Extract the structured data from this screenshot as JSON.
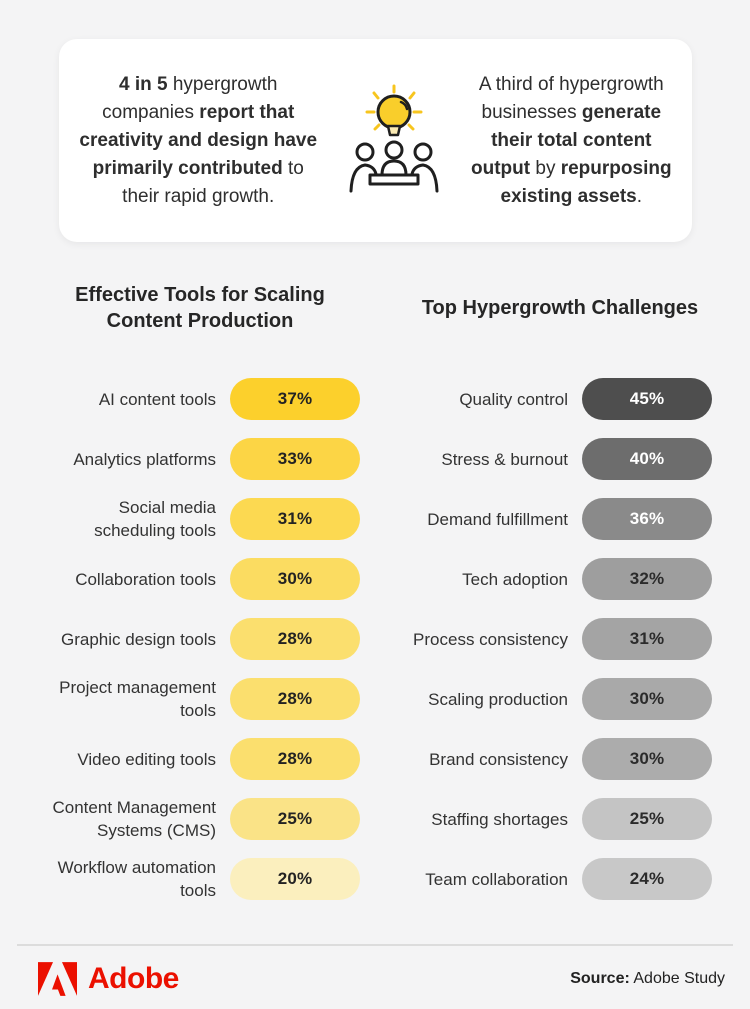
{
  "page": {
    "background": "#F4F4F5",
    "accent_yellow": "#FCD12F",
    "adobe_red": "#EB1000"
  },
  "highlight_card": {
    "left_stat": {
      "text": "4 in 5 hypergrowth companies report that creativity and design have primarily contributed to their rapid growth.",
      "lines": [
        [
          {
            "t": "4 in 5",
            "b": true
          },
          {
            "t": " hypergrowth",
            "b": false
          }
        ],
        [
          {
            "t": "companies ",
            "b": false
          },
          {
            "t": "report that",
            "b": true
          }
        ],
        [
          {
            "t": "creativity and design have",
            "b": true
          }
        ],
        [
          {
            "t": "primarily contributed",
            "b": true
          },
          {
            "t": " to",
            "b": false
          }
        ],
        [
          {
            "t": "their rapid growth.",
            "b": false
          }
        ]
      ]
    },
    "right_stat": {
      "text": "A third of hypergrowth businesses generate their total content output by repurposing existing assets.",
      "lines": [
        [
          {
            "t": "A third of hypergrowth",
            "b": false
          }
        ],
        [
          {
            "t": "businesses ",
            "b": false
          },
          {
            "t": "generate",
            "b": true
          }
        ],
        [
          {
            "t": "their total content",
            "b": true
          }
        ],
        [
          {
            "t": "output",
            "b": true
          },
          {
            "t": " by ",
            "b": false
          },
          {
            "t": "repurposing",
            "b": true
          }
        ],
        [
          {
            "t": "existing assets",
            "b": true
          },
          {
            "t": ".",
            "b": false
          }
        ]
      ]
    },
    "icon": "lightbulb-and-team-meeting"
  },
  "chart_data": [
    {
      "type": "bar",
      "title": "Effective Tools for Scaling Content Production",
      "title_lines": [
        "Effective Tools for Scaling",
        "Content Production"
      ],
      "unit": "%",
      "legend": "none",
      "bar_style": "equal-length pills; value printed on bar; yellow shade encodes value",
      "categories": [
        "AI content tools",
        "Analytics platforms",
        "Social media scheduling tools",
        "Collaboration tools",
        "Graphic design tools",
        "Project management tools",
        "Video editing tools",
        "Content Management Systems (CMS)",
        "Workflow automation tools"
      ],
      "values": [
        37,
        33,
        31,
        30,
        28,
        28,
        28,
        25,
        20
      ],
      "items": [
        {
          "label": "AI content tools",
          "value": 37,
          "display": "37%",
          "color": "#FCD02C",
          "value_color": "#232323"
        },
        {
          "label": "Analytics platforms",
          "value": 33,
          "display": "33%",
          "color": "#FCD545",
          "value_color": "#232323"
        },
        {
          "label": "Social media scheduling tools",
          "value": 31,
          "display": "31%",
          "color": "#FCD951",
          "value_color": "#232323"
        },
        {
          "label": "Collaboration tools",
          "value": 30,
          "display": "30%",
          "color": "#FBDC61",
          "value_color": "#232323"
        },
        {
          "label": "Graphic design tools",
          "value": 28,
          "display": "28%",
          "color": "#FBDF6E",
          "value_color": "#232323"
        },
        {
          "label": "Project management tools",
          "value": 28,
          "display": "28%",
          "color": "#FBDF6E",
          "value_color": "#232323"
        },
        {
          "label": "Video editing tools",
          "value": 28,
          "display": "28%",
          "color": "#FBDF6E",
          "value_color": "#232323"
        },
        {
          "label": "Content Management Systems (CMS)",
          "value": 25,
          "display": "25%",
          "color": "#FAE387",
          "value_color": "#232323"
        },
        {
          "label": "Workflow automation tools",
          "value": 20,
          "display": "20%",
          "color": "#FBEFBE",
          "value_color": "#232323"
        }
      ]
    },
    {
      "type": "bar",
      "title": "Top Hypergrowth Challenges",
      "title_lines": [
        "Top Hypergrowth Challenges"
      ],
      "unit": "%",
      "legend": "none",
      "bar_style": "equal-length pills; value printed on bar; gray shade encodes value",
      "categories": [
        "Quality control",
        "Stress & burnout",
        "Demand fulfillment",
        "Tech adoption",
        "Process consistency",
        "Scaling production",
        "Brand consistency",
        "Staffing shortages",
        "Team collaboration"
      ],
      "values": [
        45,
        40,
        36,
        32,
        31,
        30,
        30,
        25,
        24
      ],
      "items": [
        {
          "label": "Quality control",
          "value": 45,
          "display": "45%",
          "color": "#4E4E4E",
          "value_color": "#FFFFFF"
        },
        {
          "label": "Stress & burnout",
          "value": 40,
          "display": "40%",
          "color": "#6D6D6D",
          "value_color": "#FFFFFF"
        },
        {
          "label": "Demand fulfillment",
          "value": 36,
          "display": "36%",
          "color": "#8A8A8A",
          "value_color": "#FFFFFF"
        },
        {
          "label": "Tech adoption",
          "value": 32,
          "display": "32%",
          "color": "#9E9E9E",
          "value_color": "#2B2B2B"
        },
        {
          "label": "Process consistency",
          "value": 31,
          "display": "31%",
          "color": "#A4A4A4",
          "value_color": "#2B2B2B"
        },
        {
          "label": "Scaling production",
          "value": 30,
          "display": "30%",
          "color": "#A9A9A9",
          "value_color": "#2B2B2B"
        },
        {
          "label": "Brand consistency",
          "value": 30,
          "display": "30%",
          "color": "#ACACAC",
          "value_color": "#2B2B2B"
        },
        {
          "label": "Staffing shortages",
          "value": 25,
          "display": "25%",
          "color": "#C4C4C4",
          "value_color": "#2B2B2B"
        },
        {
          "label": "Team collaboration",
          "value": 24,
          "display": "24%",
          "color": "#C8C8C8",
          "value_color": "#2B2B2B"
        }
      ]
    }
  ],
  "footer": {
    "brand": "Adobe",
    "brand_color": "#EB1000",
    "source_label": "Source:",
    "source_value": " Adobe Study"
  }
}
